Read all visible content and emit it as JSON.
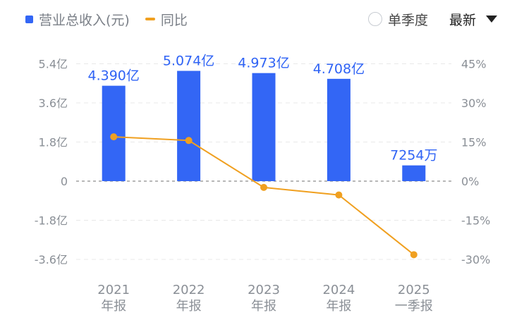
{
  "legend": {
    "bar_label": "营业总收入(元)",
    "line_label": "同比"
  },
  "controls": {
    "single_quarter_label": "单季度",
    "sort_label": "最新"
  },
  "colors": {
    "bar": "#3366f5",
    "line": "#f0a020",
    "grid": "#e8e8e8",
    "zero": "#a0a0a0"
  },
  "chart_data": {
    "type": "bar",
    "categories": [
      {
        "year": "2021",
        "period": "年报"
      },
      {
        "year": "2022",
        "period": "年报"
      },
      {
        "year": "2023",
        "period": "年报"
      },
      {
        "year": "2024",
        "period": "年报"
      },
      {
        "year": "2025",
        "period": "一季报"
      }
    ],
    "series": [
      {
        "name": "营业总收入(元)",
        "type": "bar",
        "axis": "left",
        "values": [
          439000000,
          507400000,
          497300000,
          470800000,
          72540000
        ],
        "labels": [
          "4.390亿",
          "5.074亿",
          "4.973亿",
          "4.708亿",
          "7254万"
        ]
      },
      {
        "name": "同比",
        "type": "line",
        "axis": "right",
        "values": [
          17,
          15.6,
          -2.4,
          -5.3,
          -28.2
        ]
      }
    ],
    "y_left": {
      "ticks": [
        540000000,
        360000000,
        180000000,
        0,
        -180000000,
        -360000000
      ],
      "tick_labels": [
        "5.4亿",
        "3.6亿",
        "1.8亿",
        "0",
        "-1.8亿",
        "-3.6亿"
      ],
      "range": [
        -450000000,
        540000000
      ]
    },
    "y_right": {
      "ticks": [
        45,
        30,
        15,
        0,
        -15,
        -30
      ],
      "tick_labels": [
        "45%",
        "30%",
        "15%",
        "0%",
        "-15%",
        "-30%"
      ],
      "range": [
        -37.5,
        45
      ]
    },
    "grid": true
  }
}
